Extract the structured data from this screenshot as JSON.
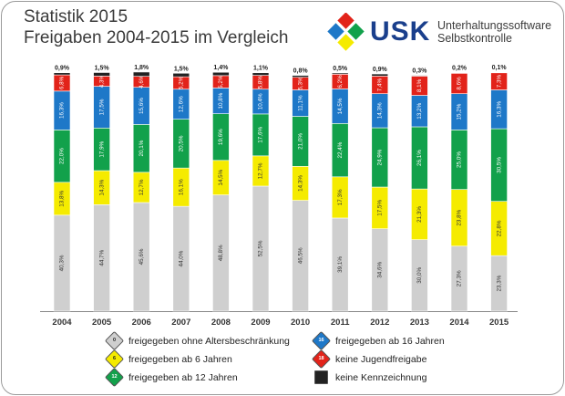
{
  "title": {
    "line1": "Statistik 2015",
    "line2": "Freigaben 2004-2015 im Vergleich"
  },
  "logo": {
    "wordmark": "USK",
    "subtitle1": "Unterhaltungssoftware",
    "subtitle2": "Selbstkontrolle"
  },
  "colors": {
    "usk0": "#cfcfcf",
    "usk6": "#f5eb00",
    "usk12": "#12a14b",
    "usk16": "#1e78c8",
    "usk18": "#e2231a",
    "none": "#222222"
  },
  "chart_data": {
    "type": "bar",
    "stacked": true,
    "ylim": [
      0,
      100
    ],
    "categories": [
      "2004",
      "2005",
      "2006",
      "2007",
      "2008",
      "2009",
      "2010",
      "2011",
      "2012",
      "2013",
      "2014",
      "2015"
    ],
    "series": [
      {
        "name": "freigegeben ohne Altersbeschränkung",
        "key": "usk0",
        "values": [
          40.3,
          44.7,
          45.6,
          44.0,
          48.8,
          52.5,
          46.5,
          39.1,
          34.6,
          30.0,
          27.3,
          23.3
        ],
        "labels": [
          "40,3%",
          "44,7%",
          "45,6%",
          "44,0%",
          "48,8%",
          "52,5%",
          "46,5%",
          "39,1%",
          "34,6%",
          "30,0%",
          "27,3%",
          "23,3%"
        ]
      },
      {
        "name": "freigegeben ab 6 Jahren",
        "key": "usk6",
        "values": [
          13.8,
          14.3,
          12.7,
          16.1,
          14.5,
          12.7,
          14.3,
          17.3,
          17.5,
          21.3,
          23.8,
          22.8
        ],
        "labels": [
          "13,8%",
          "14,3%",
          "12,7%",
          "16,1%",
          "14,5%",
          "12,7%",
          "14,3%",
          "17,3%",
          "17,5%",
          "21,3%",
          "23,8%",
          "22,8%"
        ]
      },
      {
        "name": "freigegeben ab 12 Jahren",
        "key": "usk12",
        "values": [
          22.0,
          17.9,
          20.1,
          20.5,
          19.6,
          17.6,
          21.0,
          22.4,
          24.9,
          26.1,
          25.0,
          30.5
        ],
        "labels": [
          "22,0%",
          "17,9%",
          "20,1%",
          "20,5%",
          "19,6%",
          "17,6%",
          "21,0%",
          "22,4%",
          "24,9%",
          "26,1%",
          "25,0%",
          "30,5%"
        ]
      },
      {
        "name": "freigegeben ab 16 Jahren",
        "key": "usk16",
        "values": [
          16.3,
          17.5,
          15.6,
          12.6,
          10.8,
          10.4,
          11.1,
          14.5,
          14.3,
          13.2,
          15.2,
          16.3
        ],
        "labels": [
          "16,3%",
          "17,5%",
          "15,6%",
          "12,6%",
          "10,8%",
          "10,4%",
          "11,1%",
          "14,5%",
          "14,3%",
          "13,2%",
          "15,2%",
          "16,3%"
        ]
      },
      {
        "name": "keine Jugendfreigabe",
        "key": "usk18",
        "values": [
          6.8,
          4.3,
          4.6,
          5.2,
          5.2,
          5.8,
          5.3,
          6.2,
          7.4,
          8.1,
          8.6,
          7.3
        ],
        "labels": [
          "6,8%",
          "4,3%",
          "4,6%",
          "5,2%",
          "5,2%",
          "5,8%",
          "5,3%",
          "6,2%",
          "7,4%",
          "8,1%",
          "8,6%",
          "7,3%"
        ]
      },
      {
        "name": "keine Kennzeichnung",
        "key": "none",
        "values": [
          0.9,
          1.5,
          1.8,
          1.5,
          1.4,
          1.1,
          0.8,
          0.5,
          0.9,
          0.3,
          0.2,
          0.1
        ],
        "labels": [
          "0,9%",
          "1,5%",
          "1,8%",
          "1,5%",
          "1,4%",
          "1,1%",
          "0,8%",
          "0,5%",
          "0,9%",
          "0,3%",
          "0,2%",
          "0,1%"
        ]
      }
    ],
    "legend": {
      "placement": "bottom",
      "icons": {
        "usk0": "0",
        "usk6": "6",
        "usk12": "12",
        "usk16": "16",
        "usk18": "18",
        "none": ""
      }
    }
  }
}
